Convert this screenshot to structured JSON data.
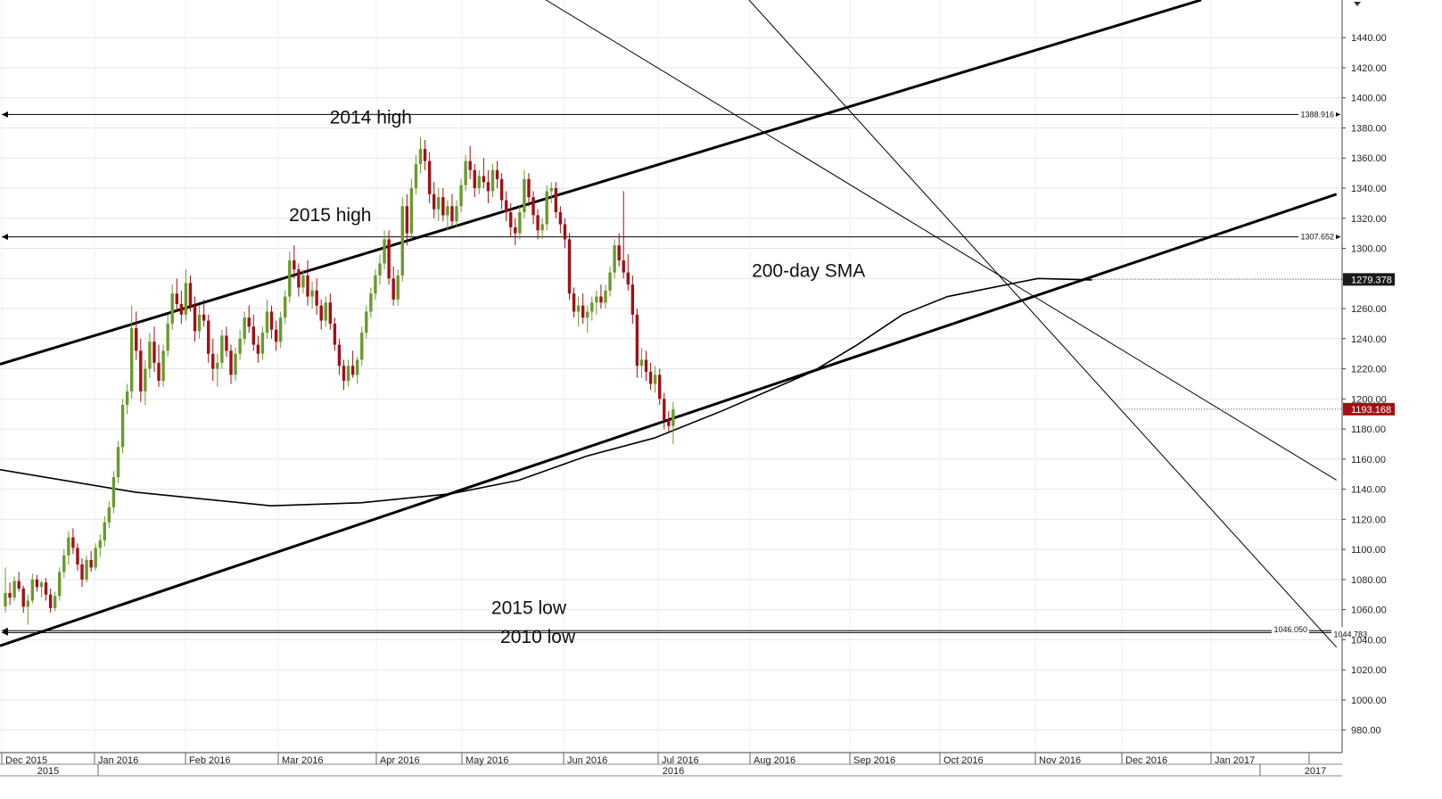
{
  "chart_data": {
    "type": "candlestick",
    "colors": {
      "up": "#6a9a2e",
      "down": "#a01015",
      "line": "#000000",
      "grid": "#e6e6e6",
      "tag_dark": "#1a1a1a",
      "tag_red": "#a01015"
    },
    "y_axis": {
      "ylim": [
        965,
        1465
      ],
      "ticks": [
        980,
        1000,
        1020,
        1040,
        1060,
        1080,
        1100,
        1120,
        1140,
        1160,
        1180,
        1200,
        1220,
        1240,
        1260,
        1280,
        1300,
        1320,
        1340,
        1360,
        1380,
        1400,
        1420,
        1440
      ],
      "tick_labels": [
        "980.00",
        "1000.00",
        "1020.00",
        "1040.00",
        "1060.00",
        "1080.00",
        "1100.00",
        "1120.00",
        "1140.00",
        "1160.00",
        "1180.00",
        "1200.00",
        "1220.00",
        "1240.00",
        "1260.00",
        "1280.00",
        "1300.00",
        "1320.00",
        "1340.00",
        "1360.00",
        "1380.00",
        "1400.00",
        "1420.00",
        "1440.00"
      ]
    },
    "x_axis": {
      "months": [
        "Dec 2015",
        "Jan 2016",
        "Feb 2016",
        "Mar 2016",
        "Apr 2016",
        "May 2016",
        "Jun 2016",
        "Jul 2016",
        "Aug 2016",
        "Sep 2016",
        "Oct 2016",
        "Nov 2016",
        "Dec 2016",
        "Jan 2017"
      ],
      "years": [
        "2015",
        "2016",
        "2017"
      ]
    },
    "candles": [
      [
        1062,
        1088,
        1058,
        1071
      ],
      [
        1071,
        1078,
        1063,
        1068
      ],
      [
        1068,
        1082,
        1066,
        1079
      ],
      [
        1079,
        1085,
        1072,
        1074
      ],
      [
        1074,
        1076,
        1058,
        1062
      ],
      [
        1062,
        1070,
        1050,
        1066
      ],
      [
        1066,
        1084,
        1064,
        1080
      ],
      [
        1080,
        1083,
        1072,
        1075
      ],
      [
        1075,
        1079,
        1068,
        1078
      ],
      [
        1078,
        1081,
        1066,
        1070
      ],
      [
        1070,
        1074,
        1058,
        1061
      ],
      [
        1061,
        1072,
        1059,
        1069
      ],
      [
        1069,
        1088,
        1066,
        1085
      ],
      [
        1085,
        1100,
        1081,
        1096
      ],
      [
        1096,
        1112,
        1090,
        1108
      ],
      [
        1108,
        1114,
        1097,
        1101
      ],
      [
        1101,
        1104,
        1086,
        1090
      ],
      [
        1090,
        1094,
        1075,
        1080
      ],
      [
        1080,
        1096,
        1078,
        1093
      ],
      [
        1093,
        1099,
        1085,
        1088
      ],
      [
        1088,
        1104,
        1086,
        1101
      ],
      [
        1101,
        1110,
        1095,
        1106
      ],
      [
        1106,
        1122,
        1102,
        1118
      ],
      [
        1118,
        1132,
        1114,
        1128
      ],
      [
        1128,
        1152,
        1124,
        1148
      ],
      [
        1148,
        1172,
        1144,
        1168
      ],
      [
        1168,
        1200,
        1164,
        1196
      ],
      [
        1196,
        1210,
        1190,
        1205
      ],
      [
        1205,
        1262,
        1200,
        1247
      ],
      [
        1247,
        1258,
        1226,
        1232
      ],
      [
        1232,
        1240,
        1198,
        1205
      ],
      [
        1205,
        1226,
        1196,
        1220
      ],
      [
        1220,
        1244,
        1214,
        1238
      ],
      [
        1238,
        1248,
        1218,
        1224
      ],
      [
        1224,
        1236,
        1208,
        1212
      ],
      [
        1212,
        1236,
        1208,
        1232
      ],
      [
        1232,
        1256,
        1228,
        1250
      ],
      [
        1250,
        1276,
        1246,
        1270
      ],
      [
        1270,
        1280,
        1258,
        1263
      ],
      [
        1263,
        1272,
        1250,
        1256
      ],
      [
        1256,
        1286,
        1252,
        1277
      ],
      [
        1277,
        1282,
        1258,
        1262
      ],
      [
        1262,
        1268,
        1238,
        1245
      ],
      [
        1245,
        1262,
        1240,
        1256
      ],
      [
        1256,
        1266,
        1248,
        1252
      ],
      [
        1252,
        1256,
        1224,
        1230
      ],
      [
        1230,
        1240,
        1212,
        1220
      ],
      [
        1220,
        1230,
        1208,
        1224
      ],
      [
        1224,
        1246,
        1220,
        1242
      ],
      [
        1242,
        1248,
        1228,
        1232
      ],
      [
        1232,
        1236,
        1210,
        1216
      ],
      [
        1216,
        1234,
        1212,
        1230
      ],
      [
        1230,
        1246,
        1226,
        1240
      ],
      [
        1240,
        1258,
        1236,
        1254
      ],
      [
        1254,
        1262,
        1244,
        1248
      ],
      [
        1248,
        1256,
        1232,
        1236
      ],
      [
        1236,
        1242,
        1224,
        1230
      ],
      [
        1230,
        1248,
        1226,
        1244
      ],
      [
        1244,
        1266,
        1240,
        1258
      ],
      [
        1258,
        1262,
        1240,
        1246
      ],
      [
        1246,
        1252,
        1232,
        1238
      ],
      [
        1238,
        1258,
        1234,
        1254
      ],
      [
        1254,
        1272,
        1250,
        1268
      ],
      [
        1268,
        1298,
        1264,
        1292
      ],
      [
        1292,
        1302,
        1280,
        1286
      ],
      [
        1286,
        1290,
        1268,
        1274
      ],
      [
        1274,
        1286,
        1270,
        1282
      ],
      [
        1282,
        1292,
        1262,
        1268
      ],
      [
        1268,
        1278,
        1260,
        1272
      ],
      [
        1272,
        1280,
        1256,
        1262
      ],
      [
        1262,
        1266,
        1246,
        1252
      ],
      [
        1252,
        1268,
        1248,
        1264
      ],
      [
        1264,
        1270,
        1246,
        1250
      ],
      [
        1250,
        1254,
        1232,
        1236
      ],
      [
        1236,
        1240,
        1216,
        1222
      ],
      [
        1222,
        1226,
        1206,
        1212
      ],
      [
        1212,
        1226,
        1208,
        1222
      ],
      [
        1222,
        1232,
        1214,
        1216
      ],
      [
        1216,
        1228,
        1210,
        1226
      ],
      [
        1226,
        1248,
        1222,
        1244
      ],
      [
        1244,
        1262,
        1240,
        1258
      ],
      [
        1258,
        1274,
        1254,
        1270
      ],
      [
        1270,
        1286,
        1266,
        1282
      ],
      [
        1282,
        1296,
        1276,
        1290
      ],
      [
        1290,
        1312,
        1286,
        1306
      ],
      [
        1306,
        1312,
        1276,
        1280
      ],
      [
        1280,
        1288,
        1262,
        1266
      ],
      [
        1266,
        1286,
        1262,
        1282
      ],
      [
        1282,
        1334,
        1278,
        1328
      ],
      [
        1328,
        1336,
        1302,
        1310
      ],
      [
        1310,
        1346,
        1306,
        1340
      ],
      [
        1340,
        1362,
        1336,
        1356
      ],
      [
        1356,
        1374,
        1350,
        1366
      ],
      [
        1366,
        1372,
        1352,
        1358
      ],
      [
        1358,
        1364,
        1330,
        1336
      ],
      [
        1336,
        1344,
        1320,
        1326
      ],
      [
        1326,
        1340,
        1318,
        1334
      ],
      [
        1334,
        1340,
        1318,
        1322
      ],
      [
        1322,
        1332,
        1312,
        1328
      ],
      [
        1328,
        1336,
        1314,
        1318
      ],
      [
        1318,
        1332,
        1314,
        1328
      ],
      [
        1328,
        1346,
        1324,
        1342
      ],
      [
        1342,
        1362,
        1338,
        1358
      ],
      [
        1358,
        1368,
        1346,
        1352
      ],
      [
        1352,
        1356,
        1334,
        1340
      ],
      [
        1340,
        1352,
        1336,
        1348
      ],
      [
        1348,
        1360,
        1340,
        1344
      ],
      [
        1344,
        1352,
        1330,
        1338
      ],
      [
        1338,
        1356,
        1334,
        1352
      ],
      [
        1352,
        1358,
        1340,
        1346
      ],
      [
        1346,
        1350,
        1326,
        1332
      ],
      [
        1332,
        1338,
        1318,
        1324
      ],
      [
        1324,
        1330,
        1308,
        1314
      ],
      [
        1314,
        1320,
        1302,
        1310
      ],
      [
        1310,
        1328,
        1306,
        1324
      ],
      [
        1324,
        1352,
        1320,
        1346
      ],
      [
        1346,
        1350,
        1328,
        1334
      ],
      [
        1334,
        1338,
        1316,
        1322
      ],
      [
        1322,
        1326,
        1306,
        1312
      ],
      [
        1312,
        1320,
        1306,
        1316
      ],
      [
        1316,
        1342,
        1312,
        1338
      ],
      [
        1338,
        1344,
        1330,
        1340
      ],
      [
        1340,
        1344,
        1320,
        1324
      ],
      [
        1324,
        1328,
        1310,
        1316
      ],
      [
        1316,
        1320,
        1300,
        1306
      ],
      [
        1306,
        1310,
        1266,
        1270
      ],
      [
        1270,
        1274,
        1254,
        1258
      ],
      [
        1258,
        1268,
        1248,
        1262
      ],
      [
        1262,
        1270,
        1250,
        1254
      ],
      [
        1254,
        1262,
        1244,
        1258
      ],
      [
        1258,
        1268,
        1252,
        1264
      ],
      [
        1264,
        1272,
        1256,
        1268
      ],
      [
        1268,
        1276,
        1260,
        1264
      ],
      [
        1264,
        1276,
        1260,
        1272
      ],
      [
        1272,
        1288,
        1268,
        1284
      ],
      [
        1284,
        1306,
        1280,
        1302
      ],
      [
        1302,
        1310,
        1288,
        1292
      ],
      [
        1292,
        1338,
        1280,
        1284
      ],
      [
        1284,
        1296,
        1272,
        1276
      ],
      [
        1276,
        1282,
        1250,
        1256
      ],
      [
        1256,
        1260,
        1214,
        1222
      ],
      [
        1222,
        1234,
        1214,
        1226
      ],
      [
        1226,
        1232,
        1212,
        1218
      ],
      [
        1218,
        1224,
        1206,
        1210
      ],
      [
        1210,
        1222,
        1204,
        1216
      ],
      [
        1216,
        1220,
        1196,
        1200
      ],
      [
        1200,
        1204,
        1180,
        1186
      ],
      [
        1186,
        1192,
        1178,
        1182
      ],
      [
        1182,
        1198,
        1170,
        1193
      ]
    ],
    "sma": [
      [
        0,
        1153
      ],
      [
        30,
        1138
      ],
      [
        60,
        1129
      ],
      [
        80,
        1131
      ],
      [
        100,
        1137
      ],
      [
        115,
        1146
      ],
      [
        130,
        1162
      ],
      [
        145,
        1174
      ],
      [
        160,
        1192
      ],
      [
        180,
        1218
      ],
      [
        190,
        1236
      ],
      [
        200,
        1256
      ],
      [
        210,
        1268
      ],
      [
        230,
        1280
      ],
      [
        242,
        1279
      ]
    ],
    "channel_upper": [
      [
        0,
        1223
      ],
      [
        265,
        1465
      ]
    ],
    "channel_lower": [
      [
        0,
        1036
      ],
      [
        295,
        1336
      ]
    ],
    "down_channel_upper": [
      [
        121,
        1465
      ],
      [
        295,
        1146
      ]
    ],
    "down_channel_lower": [
      [
        166,
        1465
      ],
      [
        295,
        1035
      ]
    ],
    "levels": [
      {
        "value": 1388.916,
        "label": "1388.916"
      },
      {
        "value": 1307.652,
        "label": "1307.652"
      },
      {
        "value": 1046.05,
        "label": "1046.050"
      },
      {
        "value": 1044.783,
        "label": "1044.783"
      }
    ],
    "annotations": [
      {
        "text": "2014 high",
        "x": 81,
        "value": 1383
      },
      {
        "text": "2015 high",
        "x": 72,
        "value": 1318
      },
      {
        "text": "200-day SMA",
        "x": 178,
        "value": 1281
      },
      {
        "text": "2015 low",
        "x": 116,
        "value": 1057
      },
      {
        "text": "2010 low",
        "x": 118,
        "value": 1038
      }
    ],
    "tags": [
      {
        "label": "1279.378",
        "value": 1279.378,
        "style": "dark",
        "dotted_from": 242
      },
      {
        "label": "1193.168",
        "value": 1193.168,
        "style": "red",
        "dotted_from": 249
      }
    ]
  }
}
